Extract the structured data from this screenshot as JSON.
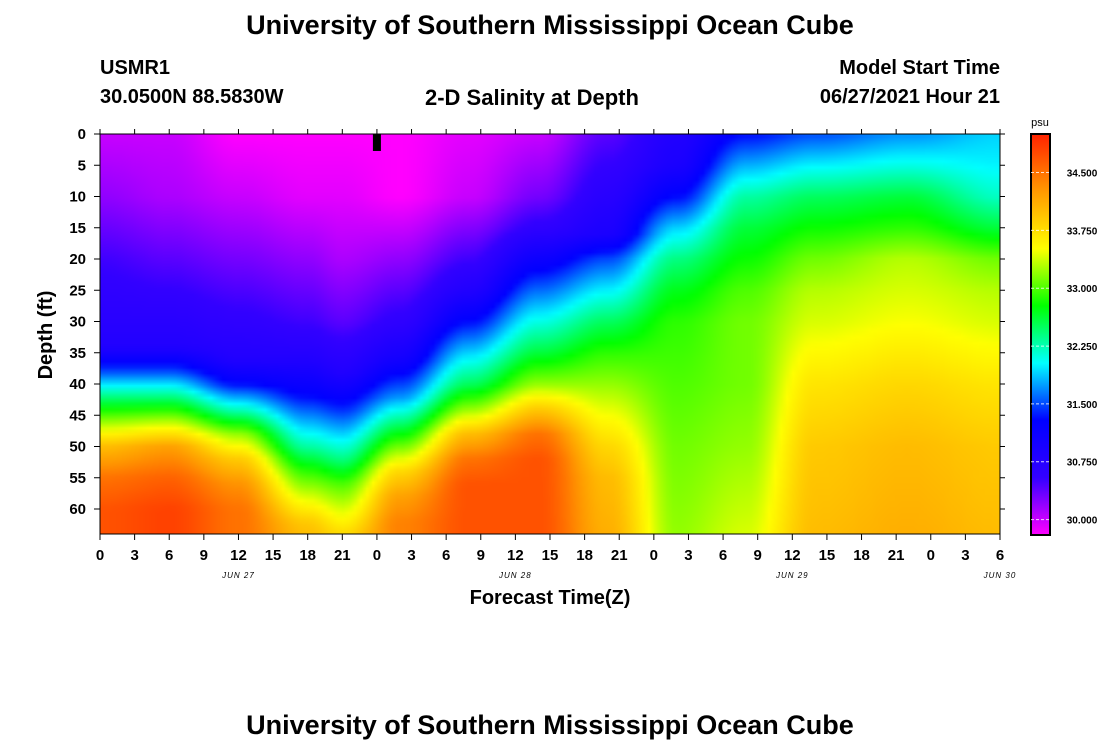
{
  "title": "University of Southern Mississippi Ocean Cube",
  "footer_title": "University of Southern Mississippi Ocean Cube",
  "station": {
    "id": "USMR1",
    "location": "30.0500N  88.5830W"
  },
  "model": {
    "label": "Model Start Time",
    "time": "06/27/2021 Hour 21"
  },
  "colors": {
    "stops": [
      "#ff00ff",
      "#3300ff",
      "#0000ff",
      "#00ffff",
      "#00ff00",
      "#ffff00",
      "#ff9900",
      "#ff2200"
    ],
    "frame": "#000000"
  },
  "chart_data": {
    "type": "heatmap",
    "title": "2-D Salinity at Depth",
    "xlabel": "Forecast Time(Z)",
    "ylabel": "Depth (ft)",
    "colorbar_unit": "psu",
    "x_ticks": [
      "0",
      "3",
      "6",
      "9",
      "12",
      "15",
      "18",
      "21",
      "0",
      "3",
      "6",
      "9",
      "12",
      "15",
      "18",
      "21",
      "0",
      "3",
      "6",
      "9",
      "12",
      "15",
      "18",
      "21",
      "0",
      "3",
      "6"
    ],
    "date_labels": [
      {
        "label": "JUN 27",
        "hour": 12
      },
      {
        "label": "JUN 28",
        "hour": 36
      },
      {
        "label": "JUN 29",
        "hour": 60
      },
      {
        "label": "JUN 30",
        "hour": 78
      }
    ],
    "x_range_hours": [
      0,
      78
    ],
    "y_ticks": [
      0,
      5,
      10,
      15,
      20,
      25,
      30,
      35,
      40,
      45,
      50,
      55,
      60
    ],
    "y_range": [
      0,
      64
    ],
    "model_start_hour": 24,
    "colorbar_ticks": [
      "34.500",
      "33.750",
      "33.000",
      "32.250",
      "31.500",
      "30.750",
      "30.000"
    ],
    "colorbar_range": [
      29.8,
      35.0
    ],
    "salinity_profiles": [
      {
        "hour": 0,
        "depths": [
          0,
          10,
          20,
          30,
          34,
          38,
          42,
          46,
          50,
          55,
          60,
          64
        ],
        "values": [
          30.0,
          30.2,
          30.5,
          30.7,
          30.8,
          31.5,
          32.4,
          33.2,
          34.0,
          34.5,
          34.7,
          34.7
        ]
      },
      {
        "hour": 6,
        "depths": [
          0,
          10,
          20,
          30,
          34,
          38,
          42,
          46,
          50,
          55,
          60,
          64
        ],
        "values": [
          30.0,
          30.1,
          30.4,
          30.7,
          30.8,
          31.5,
          32.4,
          33.3,
          34.2,
          34.6,
          34.8,
          34.8
        ]
      },
      {
        "hour": 12,
        "depths": [
          0,
          10,
          20,
          30,
          36,
          40,
          44,
          48,
          52,
          56,
          60,
          64
        ],
        "values": [
          29.8,
          30.0,
          30.3,
          30.6,
          30.8,
          31.3,
          32.2,
          33.2,
          33.9,
          34.3,
          34.5,
          34.5
        ]
      },
      {
        "hour": 18,
        "depths": [
          0,
          10,
          20,
          30,
          36,
          42,
          46,
          50,
          54,
          58,
          62,
          64
        ],
        "values": [
          29.8,
          29.9,
          30.2,
          30.5,
          30.8,
          31.3,
          31.8,
          32.3,
          32.9,
          33.4,
          33.9,
          34.0
        ]
      },
      {
        "hour": 21,
        "depths": [
          0,
          10,
          20,
          30,
          38,
          44,
          48,
          52,
          56,
          60,
          64
        ],
        "values": [
          29.8,
          29.9,
          30.1,
          30.4,
          30.8,
          31.4,
          31.9,
          32.4,
          33.0,
          33.4,
          33.8
        ]
      },
      {
        "hour": 26,
        "depths": [
          0,
          10,
          20,
          30,
          36,
          42,
          46,
          50,
          54,
          58,
          62,
          64
        ],
        "values": [
          29.8,
          29.8,
          30.2,
          30.6,
          31.0,
          31.7,
          32.4,
          33.1,
          33.8,
          34.2,
          34.4,
          34.4
        ]
      },
      {
        "hour": 32,
        "depths": [
          0,
          10,
          20,
          25,
          30,
          35,
          40,
          44,
          48,
          52,
          56,
          64
        ],
        "values": [
          29.9,
          30.0,
          30.5,
          30.8,
          31.3,
          31.9,
          32.5,
          33.2,
          34.0,
          34.5,
          34.7,
          34.7
        ]
      },
      {
        "hour": 38,
        "depths": [
          0,
          10,
          15,
          20,
          25,
          30,
          35,
          40,
          44,
          48,
          52,
          64
        ],
        "values": [
          30.0,
          30.3,
          30.6,
          31.1,
          31.6,
          32.1,
          32.6,
          33.2,
          33.9,
          34.5,
          34.7,
          34.7
        ]
      },
      {
        "hour": 44,
        "depths": [
          0,
          10,
          16,
          20,
          25,
          30,
          35,
          40,
          45,
          50,
          55,
          64
        ],
        "values": [
          30.4,
          30.7,
          30.9,
          31.5,
          32.0,
          32.5,
          32.9,
          33.2,
          33.5,
          33.8,
          34.0,
          34.1
        ]
      },
      {
        "hour": 50,
        "depths": [
          0,
          5,
          10,
          15,
          20,
          25,
          30,
          40,
          50,
          64
        ],
        "values": [
          30.8,
          30.9,
          31.3,
          31.9,
          32.4,
          32.7,
          32.9,
          33.0,
          33.1,
          33.2
        ]
      },
      {
        "hour": 56,
        "depths": [
          0,
          5,
          10,
          15,
          20,
          25,
          30,
          40,
          50,
          64
        ],
        "values": [
          31.3,
          31.8,
          32.3,
          32.6,
          32.8,
          33.0,
          33.1,
          33.1,
          33.2,
          33.4
        ]
      },
      {
        "hour": 62,
        "depths": [
          0,
          5,
          10,
          15,
          20,
          25,
          30,
          40,
          50,
          64
        ],
        "values": [
          31.5,
          32.0,
          32.5,
          32.8,
          33.1,
          33.3,
          33.4,
          33.7,
          33.9,
          34.0
        ]
      },
      {
        "hour": 70,
        "depths": [
          0,
          5,
          10,
          15,
          20,
          25,
          30,
          40,
          50,
          64
        ],
        "values": [
          31.7,
          32.1,
          32.6,
          32.9,
          33.3,
          33.4,
          33.5,
          33.8,
          34.0,
          34.1
        ]
      },
      {
        "hour": 78,
        "depths": [
          0,
          5,
          10,
          15,
          20,
          25,
          30,
          40,
          50,
          64
        ],
        "values": [
          31.9,
          32.0,
          32.2,
          32.6,
          33.1,
          33.3,
          33.4,
          33.7,
          33.9,
          34.0
        ]
      }
    ]
  }
}
